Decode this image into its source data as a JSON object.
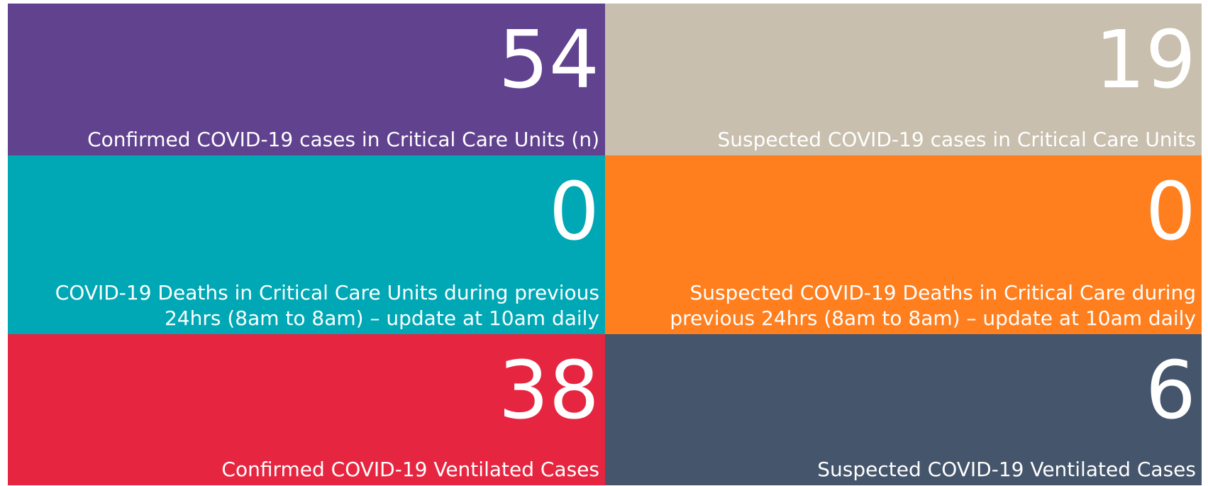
{
  "tiles": [
    {
      "value": "54",
      "label": "Confirmed COVID-19 cases in Critical Care Units (n)",
      "color": "#61428f"
    },
    {
      "value": "19",
      "label": "Suspected COVID-19 cases in Critical Care Units",
      "color": "#c8bfae"
    },
    {
      "value": "0",
      "label": "COVID-19 Deaths in Critical Care Units during previous 24hrs (8am to 8am) – update at 10am daily",
      "color": "#00a8b5"
    },
    {
      "value": "0",
      "label": "Suspected COVID-19 Deaths in Critical Care during previous 24hrs (8am to 8am) – update at 10am daily",
      "color": "#ff7f1f"
    },
    {
      "value": "38",
      "label": "Confirmed COVID-19 Ventilated Cases",
      "color": "#e62641"
    },
    {
      "value": "6",
      "label": "Suspected COVID-19 Ventilated Cases",
      "color": "#45556b"
    }
  ]
}
